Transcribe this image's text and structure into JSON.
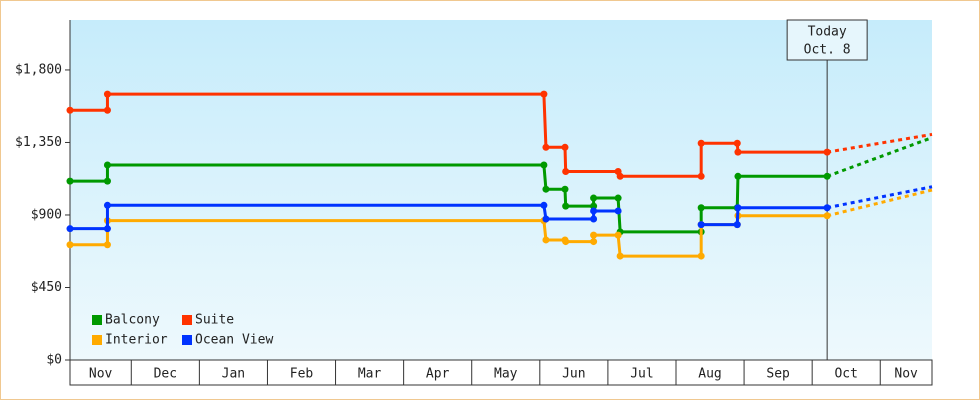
{
  "chart_data": {
    "type": "line",
    "xlim": [
      0.1,
      12.76
    ],
    "xticks": [
      {
        "value": 0.1,
        "label": "Nov"
      },
      {
        "value": 1,
        "label": "Dec"
      },
      {
        "value": 2,
        "label": "Jan"
      },
      {
        "value": 3,
        "label": "Feb"
      },
      {
        "value": 4,
        "label": "Mar"
      },
      {
        "value": 5,
        "label": "Apr"
      },
      {
        "value": 6,
        "label": "May"
      },
      {
        "value": 7,
        "label": "Jun"
      },
      {
        "value": 8,
        "label": "Jul"
      },
      {
        "value": 9,
        "label": "Aug"
      },
      {
        "value": 10,
        "label": "Sep"
      },
      {
        "value": 11,
        "label": "Oct"
      },
      {
        "value": 12,
        "label": "Nov"
      }
    ],
    "ylim": [
      0,
      2110
    ],
    "yticks": [
      {
        "value": 0,
        "label": "$0"
      },
      {
        "value": 450,
        "label": "$450"
      },
      {
        "value": 900,
        "label": "$900"
      },
      {
        "value": 1350,
        "label": "$1,350"
      },
      {
        "value": 1800,
        "label": "$1,800"
      }
    ],
    "annotation": {
      "x": 11.22,
      "text": [
        "Today",
        "Oct. 8"
      ]
    },
    "series": [
      {
        "name": "Balcony",
        "color": "#009900",
        "x": [
          0.1,
          0.65,
          0.65,
          7.06,
          7.09,
          7.37,
          7.38,
          7.79,
          7.79,
          8.15,
          8.18,
          9.37,
          9.37,
          9.9,
          9.91,
          11.22,
          12.76
        ],
        "values": [
          1110,
          1110,
          1210,
          1210,
          1060,
          1060,
          955,
          955,
          1005,
          1005,
          795,
          795,
          945,
          945,
          1140,
          1140,
          1380
        ]
      },
      {
        "name": "Suite",
        "color": "#ff3300",
        "x": [
          0.1,
          0.65,
          0.65,
          7.06,
          7.09,
          7.37,
          7.38,
          8.15,
          8.18,
          9.37,
          9.37,
          9.9,
          9.91,
          11.22,
          12.76
        ],
        "values": [
          1550,
          1550,
          1650,
          1650,
          1320,
          1320,
          1170,
          1170,
          1140,
          1140,
          1345,
          1345,
          1290,
          1290,
          1400
        ]
      },
      {
        "name": "Interior",
        "color": "#ffaa00",
        "x": [
          0.1,
          0.65,
          0.65,
          7.06,
          7.09,
          7.37,
          7.38,
          7.79,
          7.79,
          8.15,
          8.18,
          9.37,
          9.37,
          9.9,
          9.91,
          11.22,
          12.76
        ],
        "values": [
          715,
          715,
          865,
          865,
          745,
          745,
          735,
          735,
          775,
          775,
          645,
          645,
          840,
          840,
          895,
          895,
          1055
        ]
      },
      {
        "name": "Ocean View",
        "color": "#0033ff",
        "x": [
          0.1,
          0.65,
          0.65,
          7.06,
          7.09,
          7.79,
          7.79,
          8.15,
          null,
          9.37,
          9.9,
          9.91,
          11.22,
          12.76
        ],
        "values": [
          815,
          815,
          960,
          960,
          875,
          875,
          925,
          925,
          null,
          840,
          840,
          945,
          945,
          1075
        ]
      }
    ]
  }
}
